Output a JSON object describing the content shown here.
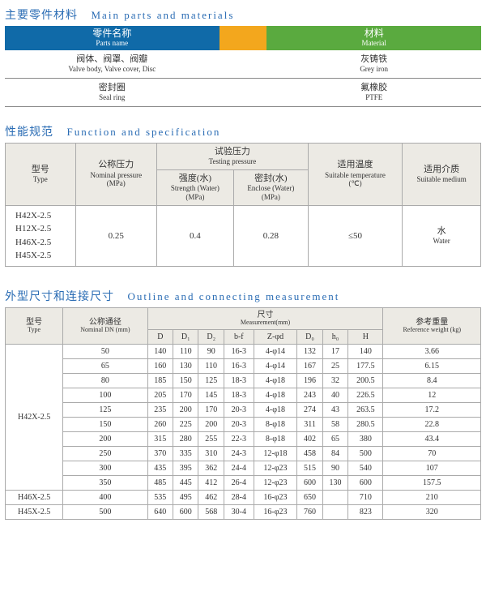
{
  "sections": {
    "parts": {
      "cn": "主要零件材料",
      "en": "Main parts and materials"
    },
    "spec": {
      "cn": "性能规范",
      "en": "Function and specification"
    },
    "dims": {
      "cn": "外型尺寸和连接尺寸",
      "en": "Outline and connecting measurement"
    }
  },
  "t1": {
    "h1": {
      "cn": "零件名称",
      "en": "Parts name"
    },
    "h2": {
      "cn": "材料",
      "en": "Material"
    },
    "r1": {
      "p": {
        "cn": "阀体、阀罩、阀瓣",
        "en": "Valve body, Valve cover, Disc"
      },
      "m": {
        "cn": "灰铸铁",
        "en": "Grey iron"
      }
    },
    "r2": {
      "p": {
        "cn": "密封圈",
        "en": "Seal ring"
      },
      "m": {
        "cn": "氟橡胶",
        "en": "PTFE"
      }
    }
  },
  "t2": {
    "type": {
      "cn": "型号",
      "en": "Type"
    },
    "nomp": {
      "cn": "公称压力",
      "en": "Nominal pressure",
      "u": "(MPa)"
    },
    "testp": {
      "cn": "试验压力",
      "en": "Testing pressure"
    },
    "strength": {
      "cn": "强度(水)",
      "en": "Strength (Water)",
      "u": "(MPa)"
    },
    "enclose": {
      "cn": "密封(水)",
      "en": "Enclose (Water)",
      "u": "(MPa)"
    },
    "temp": {
      "cn": "适用温度",
      "en": "Suitable temperature",
      "u": "(℃)"
    },
    "medium": {
      "cn": "适用介质",
      "en": "Suitable medium"
    },
    "types": [
      "H42X-2.5",
      "H12X-2.5",
      "H46X-2.5",
      "H45X-2.5"
    ],
    "vals": {
      "np": "0.25",
      "st": "0.4",
      "en": "0.28",
      "te": "≤50",
      "me": {
        "cn": "水",
        "en": "Water"
      }
    }
  },
  "t3": {
    "type": {
      "cn": "型号",
      "en": "Type"
    },
    "dn": {
      "cn": "公称通径",
      "en": "Nominal DN (mm)"
    },
    "measure": {
      "cn": "尺寸",
      "en": "Measurement(mm)"
    },
    "weight": {
      "cn": "参考重量",
      "en": "Reference weight (kg)"
    },
    "cols": [
      "D",
      "D₁",
      "D₂",
      "b-f",
      "Z-φd",
      "D₀",
      "h₀",
      "H"
    ],
    "body": [
      {
        "t": "H42X-2.5",
        "span": 10,
        "rows": [
          [
            "50",
            "140",
            "110",
            "90",
            "16-3",
            "4-φ14",
            "132",
            "17",
            "140",
            "3.66"
          ],
          [
            "65",
            "160",
            "130",
            "110",
            "16-3",
            "4-φ14",
            "167",
            "25",
            "177.5",
            "6.15"
          ],
          [
            "80",
            "185",
            "150",
            "125",
            "18-3",
            "4-φ18",
            "196",
            "32",
            "200.5",
            "8.4"
          ],
          [
            "100",
            "205",
            "170",
            "145",
            "18-3",
            "4-φ18",
            "243",
            "40",
            "226.5",
            "12"
          ],
          [
            "125",
            "235",
            "200",
            "170",
            "20-3",
            "4-φ18",
            "274",
            "43",
            "263.5",
            "17.2"
          ],
          [
            "150",
            "260",
            "225",
            "200",
            "20-3",
            "8-φ18",
            "311",
            "58",
            "280.5",
            "22.8"
          ],
          [
            "200",
            "315",
            "280",
            "255",
            "22-3",
            "8-φ18",
            "402",
            "65",
            "380",
            "43.4"
          ],
          [
            "250",
            "370",
            "335",
            "310",
            "24-3",
            "12-φ18",
            "458",
            "84",
            "500",
            "70"
          ],
          [
            "300",
            "435",
            "395",
            "362",
            "24-4",
            "12-φ23",
            "515",
            "90",
            "540",
            "107"
          ],
          [
            "350",
            "485",
            "445",
            "412",
            "26-4",
            "12-φ23",
            "600",
            "130",
            "600",
            "157.5"
          ]
        ]
      },
      {
        "t": "H46X-2.5",
        "span": 1,
        "rows": [
          [
            "400",
            "535",
            "495",
            "462",
            "28-4",
            "16-φ23",
            "650",
            "",
            "710",
            "210"
          ]
        ]
      },
      {
        "t": "H45X-2.5",
        "span": 1,
        "rows": [
          [
            "500",
            "640",
            "600",
            "568",
            "30-4",
            "16-φ23",
            "760",
            "",
            "823",
            "320"
          ]
        ]
      }
    ]
  }
}
